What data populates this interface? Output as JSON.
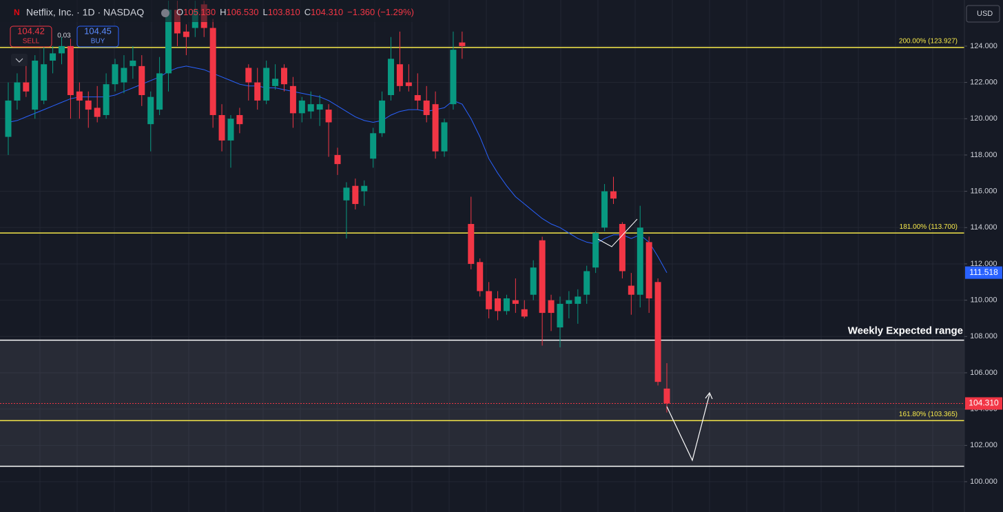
{
  "header": {
    "logo": "N",
    "symbol": "Netflix, Inc. · 1D · NASDAQ",
    "ohlc": [
      {
        "key": "O",
        "value": "105.130"
      },
      {
        "key": "H",
        "value": "106.530"
      },
      {
        "key": "L",
        "value": "103.810"
      },
      {
        "key": "C",
        "value": "104.310"
      }
    ],
    "change": "−1.360 (−1.29%)"
  },
  "trade": {
    "sell_price": "104.42",
    "sell": "SELL",
    "spread": "0.03",
    "buy_price": "104.45",
    "buy": "BUY"
  },
  "currency": "USD",
  "chart_data": {
    "type": "candlestick",
    "categories": [
      null,
      null,
      null,
      null,
      null,
      null,
      null,
      null,
      null,
      null,
      null,
      null,
      null,
      null,
      null,
      null,
      null,
      null,
      null,
      null,
      null,
      null,
      null,
      null,
      null,
      null,
      null,
      null,
      null,
      null,
      null,
      null,
      null,
      null,
      null,
      null,
      null,
      null,
      null,
      null,
      null,
      null,
      null,
      null,
      null,
      null,
      null,
      null,
      null,
      null,
      null,
      null,
      null,
      null,
      null,
      null,
      null,
      null,
      null,
      null,
      null,
      null,
      null,
      null,
      null,
      null,
      null,
      null,
      null,
      null,
      null,
      null,
      null,
      null,
      null
    ],
    "open": [
      119,
      121,
      122,
      120.5,
      121,
      123.2,
      123.6,
      124,
      121.5,
      121,
      120.6,
      120.2,
      121.9,
      122,
      122.9,
      122.9,
      119.7,
      120.5,
      122.5,
      126,
      124.8,
      125,
      126.3,
      125,
      120.2,
      118.8,
      120.2,
      122.8,
      122,
      121,
      121.8,
      122.8,
      121.8,
      120.3,
      120.4,
      120.5,
      120.5,
      118,
      115.5,
      116.3,
      116,
      117.8,
      119.2,
      121.3,
      123,
      122,
      121.3,
      121,
      120.8,
      118.2,
      120.8,
      124.2,
      114.2,
      112.1,
      110.5,
      110.1,
      109.4,
      110,
      109.5,
      110.3,
      113.3,
      110,
      108.5,
      109.8,
      109.8,
      110.3,
      111.8,
      114,
      116,
      114.2,
      110.8,
      110.3,
      113.2,
      111,
      105.13
    ],
    "high": [
      122,
      122.5,
      123,
      123.5,
      124,
      124,
      124.5,
      124.4,
      122,
      121.5,
      121.8,
      122.5,
      123.3,
      123.5,
      124,
      123.5,
      121.5,
      123.4,
      126.5,
      126.5,
      125.2,
      126.5,
      126.5,
      125.5,
      120.8,
      120.2,
      120.6,
      123,
      122.8,
      123.2,
      123,
      123,
      122.3,
      121.2,
      121.5,
      121.3,
      120.8,
      118.4,
      116.5,
      116.7,
      116.6,
      119.5,
      121.5,
      124.5,
      124.8,
      123,
      122.5,
      121.8,
      121.5,
      120,
      124.8,
      124.8,
      115.7,
      112.3,
      111,
      110.5,
      110.3,
      111.2,
      110,
      112.2,
      113.5,
      110.3,
      110.2,
      110.5,
      110.6,
      111.9,
      113.8,
      116.4,
      116.8,
      114.3,
      111.5,
      115.2,
      113.5,
      111.2,
      106.53
    ],
    "low": [
      118,
      120.5,
      121.2,
      120,
      120.8,
      122.5,
      123,
      120,
      120,
      119.5,
      119.8,
      120,
      121.5,
      121.4,
      122.2,
      120.7,
      118.2,
      120.2,
      121.5,
      124,
      123.5,
      124.5,
      124.5,
      119.5,
      118.2,
      117.3,
      119.2,
      121,
      120.5,
      120.8,
      121.6,
      121.5,
      119.5,
      119.8,
      120,
      119.6,
      117.9,
      116.9,
      113.4,
      115,
      115.2,
      117.3,
      119,
      121,
      121.5,
      121.5,
      120.5,
      119.8,
      117.8,
      117.9,
      120.5,
      123.3,
      111.7,
      110.2,
      109,
      108.9,
      109.2,
      109.3,
      109,
      110,
      107.5,
      108.3,
      107.4,
      109,
      108.7,
      109.8,
      111.5,
      113.8,
      115.3,
      111.2,
      109.2,
      109.6,
      109.3,
      105.3,
      103.81
    ],
    "close": [
      121,
      122,
      121.5,
      123.2,
      123,
      123.6,
      124,
      121.3,
      121,
      120.5,
      120.1,
      121.9,
      123,
      122.8,
      123.2,
      121.3,
      121.2,
      122.5,
      126,
      124.7,
      124.5,
      126,
      125,
      120.2,
      118.8,
      120,
      119.7,
      122,
      121,
      122.8,
      122.2,
      121.9,
      120.3,
      121,
      120.8,
      120.8,
      119.8,
      117.5,
      116.2,
      115.3,
      116.3,
      119.2,
      121,
      123.3,
      121.8,
      121.8,
      121,
      120.2,
      118.2,
      119.8,
      123.8,
      124,
      112,
      110.5,
      109.5,
      109.4,
      110.1,
      109.8,
      109.1,
      111.8,
      109.3,
      109.3,
      109.8,
      110,
      110.2,
      111.6,
      113.7,
      116,
      115.6,
      111.6,
      110.3,
      114,
      110.1,
      105.5,
      104.31
    ],
    "up_color": "#089981",
    "down_color": "#f23645",
    "ma": {
      "color": "#2962ff",
      "values": [
        119.8,
        119.9,
        120.1,
        120.3,
        120.5,
        120.7,
        120.9,
        121.1,
        121.2,
        121.2,
        121.2,
        121.2,
        121.3,
        121.5,
        121.7,
        121.9,
        122.1,
        122.3,
        122.6,
        122.8,
        122.9,
        122.8,
        122.7,
        122.5,
        122.3,
        122.1,
        121.9,
        121.8,
        121.8,
        121.7,
        121.7,
        121.6,
        121.5,
        121.4,
        121.3,
        121.2,
        121,
        120.7,
        120.4,
        120.1,
        119.9,
        119.8,
        119.9,
        120.2,
        120.4,
        120.5,
        120.5,
        120.4,
        120.5,
        120.6,
        121,
        120.8,
        120,
        119,
        117.8,
        117,
        116.3,
        115.7,
        115.3,
        114.9,
        114.5,
        114.2,
        114,
        113.7,
        113.4,
        113.2,
        113.1,
        113.4,
        113.6,
        113.6,
        113.4,
        113.6,
        113.2,
        112.4,
        111.518
      ]
    },
    "ylim": [
      98.33,
      126.54
    ],
    "yticks": [
      {
        "value": 100,
        "label": "100.000"
      },
      {
        "value": 102,
        "label": "102.000"
      },
      {
        "value": 104,
        "label": "104.000"
      },
      {
        "value": 106,
        "label": "106.000"
      },
      {
        "value": 108,
        "label": "108.000"
      },
      {
        "value": 110,
        "label": "110.000"
      },
      {
        "value": 112,
        "label": "112.000"
      },
      {
        "value": 114,
        "label": "114.000"
      },
      {
        "value": 116,
        "label": "116.000"
      },
      {
        "value": 118,
        "label": "118.000"
      },
      {
        "value": 120,
        "label": "120.000"
      },
      {
        "value": 122,
        "label": "122.000"
      },
      {
        "value": 124,
        "label": "124.000"
      }
    ],
    "grid": true,
    "levels": [
      {
        "value": 123.927,
        "label": "200.00% (123.927)",
        "color": "#f7e94a"
      },
      {
        "value": 113.7,
        "label": "181.00% (113.700)",
        "color": "#f7e94a"
      },
      {
        "value": 103.365,
        "label": "161.80% (103.365)",
        "color": "#f7e94a"
      }
    ],
    "range": {
      "top": 107.8,
      "bottom": 100.85,
      "label": "Weekly Expected range"
    },
    "last": {
      "value": 104.31,
      "label": "104.310",
      "color": "#f23645"
    },
    "ma_last": {
      "value": 111.518,
      "label": "111.518",
      "color": "#2962ff"
    }
  }
}
